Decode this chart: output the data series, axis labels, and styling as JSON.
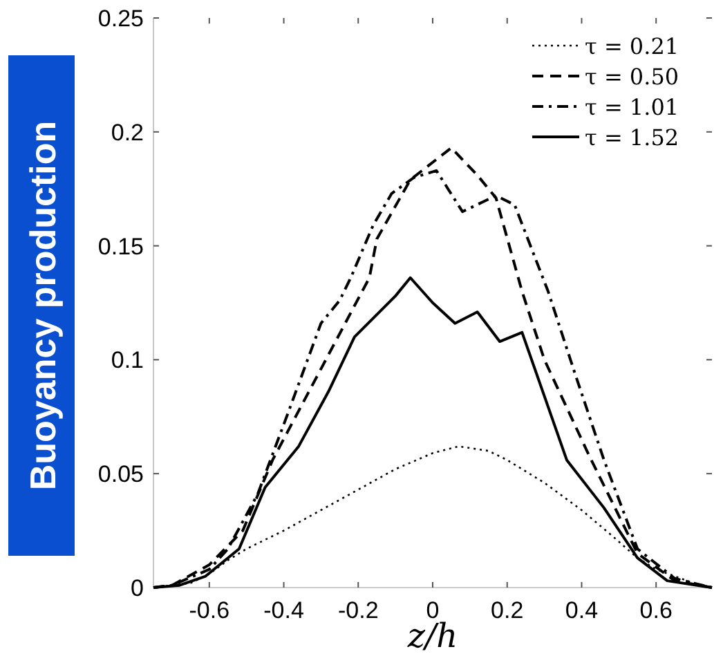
{
  "chart_data": {
    "type": "line",
    "xlabel": "z/h",
    "ylabel": "Buoyancy production",
    "xlim": [
      -0.75,
      0.75
    ],
    "ylim": [
      0,
      0.25
    ],
    "xticks": [
      -0.6,
      -0.4,
      -0.2,
      0,
      0.2,
      0.4,
      0.6
    ],
    "yticks": [
      0,
      0.05,
      0.1,
      0.15,
      0.2,
      0.25
    ],
    "legend": "top right",
    "grid": false,
    "series": [
      {
        "name": "τ = 0.21",
        "color": "#000000",
        "line_style": "dotted",
        "x": [
          -0.75,
          -0.65,
          -0.6,
          -0.55,
          -0.5,
          -0.4,
          -0.3,
          -0.2,
          -0.1,
          0,
          0.07,
          0.15,
          0.2,
          0.3,
          0.4,
          0.48,
          0.55,
          0.6,
          0.7,
          0.75
        ],
        "values": [
          0,
          0.002,
          0.006,
          0.012,
          0.017,
          0.025,
          0.034,
          0.043,
          0.052,
          0.059,
          0.062,
          0.06,
          0.056,
          0.046,
          0.034,
          0.023,
          0.013,
          0.008,
          0.002,
          0
        ]
      },
      {
        "name": "τ = 0.50",
        "color": "#000000",
        "line_style": "dashed",
        "x": [
          -0.75,
          -0.7,
          -0.6,
          -0.51,
          -0.43,
          -0.3,
          -0.17,
          -0.15,
          -0.06,
          0.05,
          0.12,
          0.17,
          0.24,
          0.3,
          0.42,
          0.55,
          0.65,
          0.75
        ],
        "values": [
          0,
          0.001,
          0.01,
          0.025,
          0.056,
          0.096,
          0.136,
          0.153,
          0.179,
          0.193,
          0.181,
          0.171,
          0.13,
          0.1,
          0.058,
          0.015,
          0.003,
          0
        ]
      },
      {
        "name": "τ = 1.01",
        "color": "#000000",
        "line_style": "dashdot",
        "x": [
          -0.75,
          -0.7,
          -0.6,
          -0.55,
          -0.47,
          -0.39,
          -0.3,
          -0.25,
          -0.22,
          -0.16,
          -0.11,
          -0.05,
          0.01,
          0.08,
          0.17,
          0.22,
          0.31,
          0.38,
          0.46,
          0.55,
          0.65,
          0.75
        ],
        "values": [
          0,
          0.001,
          0.008,
          0.017,
          0.041,
          0.076,
          0.116,
          0.126,
          0.136,
          0.159,
          0.173,
          0.18,
          0.183,
          0.165,
          0.172,
          0.168,
          0.13,
          0.095,
          0.056,
          0.017,
          0.004,
          0
        ]
      },
      {
        "name": "τ = 1.52",
        "color": "#000000",
        "line_style": "solid",
        "x": [
          -0.75,
          -0.68,
          -0.61,
          -0.52,
          -0.45,
          -0.36,
          -0.28,
          -0.21,
          -0.1,
          -0.06,
          0,
          0.06,
          0.12,
          0.18,
          0.24,
          0.3,
          0.36,
          0.46,
          0.55,
          0.63,
          0.75
        ],
        "values": [
          0,
          0.001,
          0.005,
          0.017,
          0.044,
          0.062,
          0.086,
          0.11,
          0.128,
          0.136,
          0.125,
          0.116,
          0.121,
          0.108,
          0.112,
          0.084,
          0.056,
          0.035,
          0.013,
          0.003,
          0
        ]
      }
    ]
  }
}
